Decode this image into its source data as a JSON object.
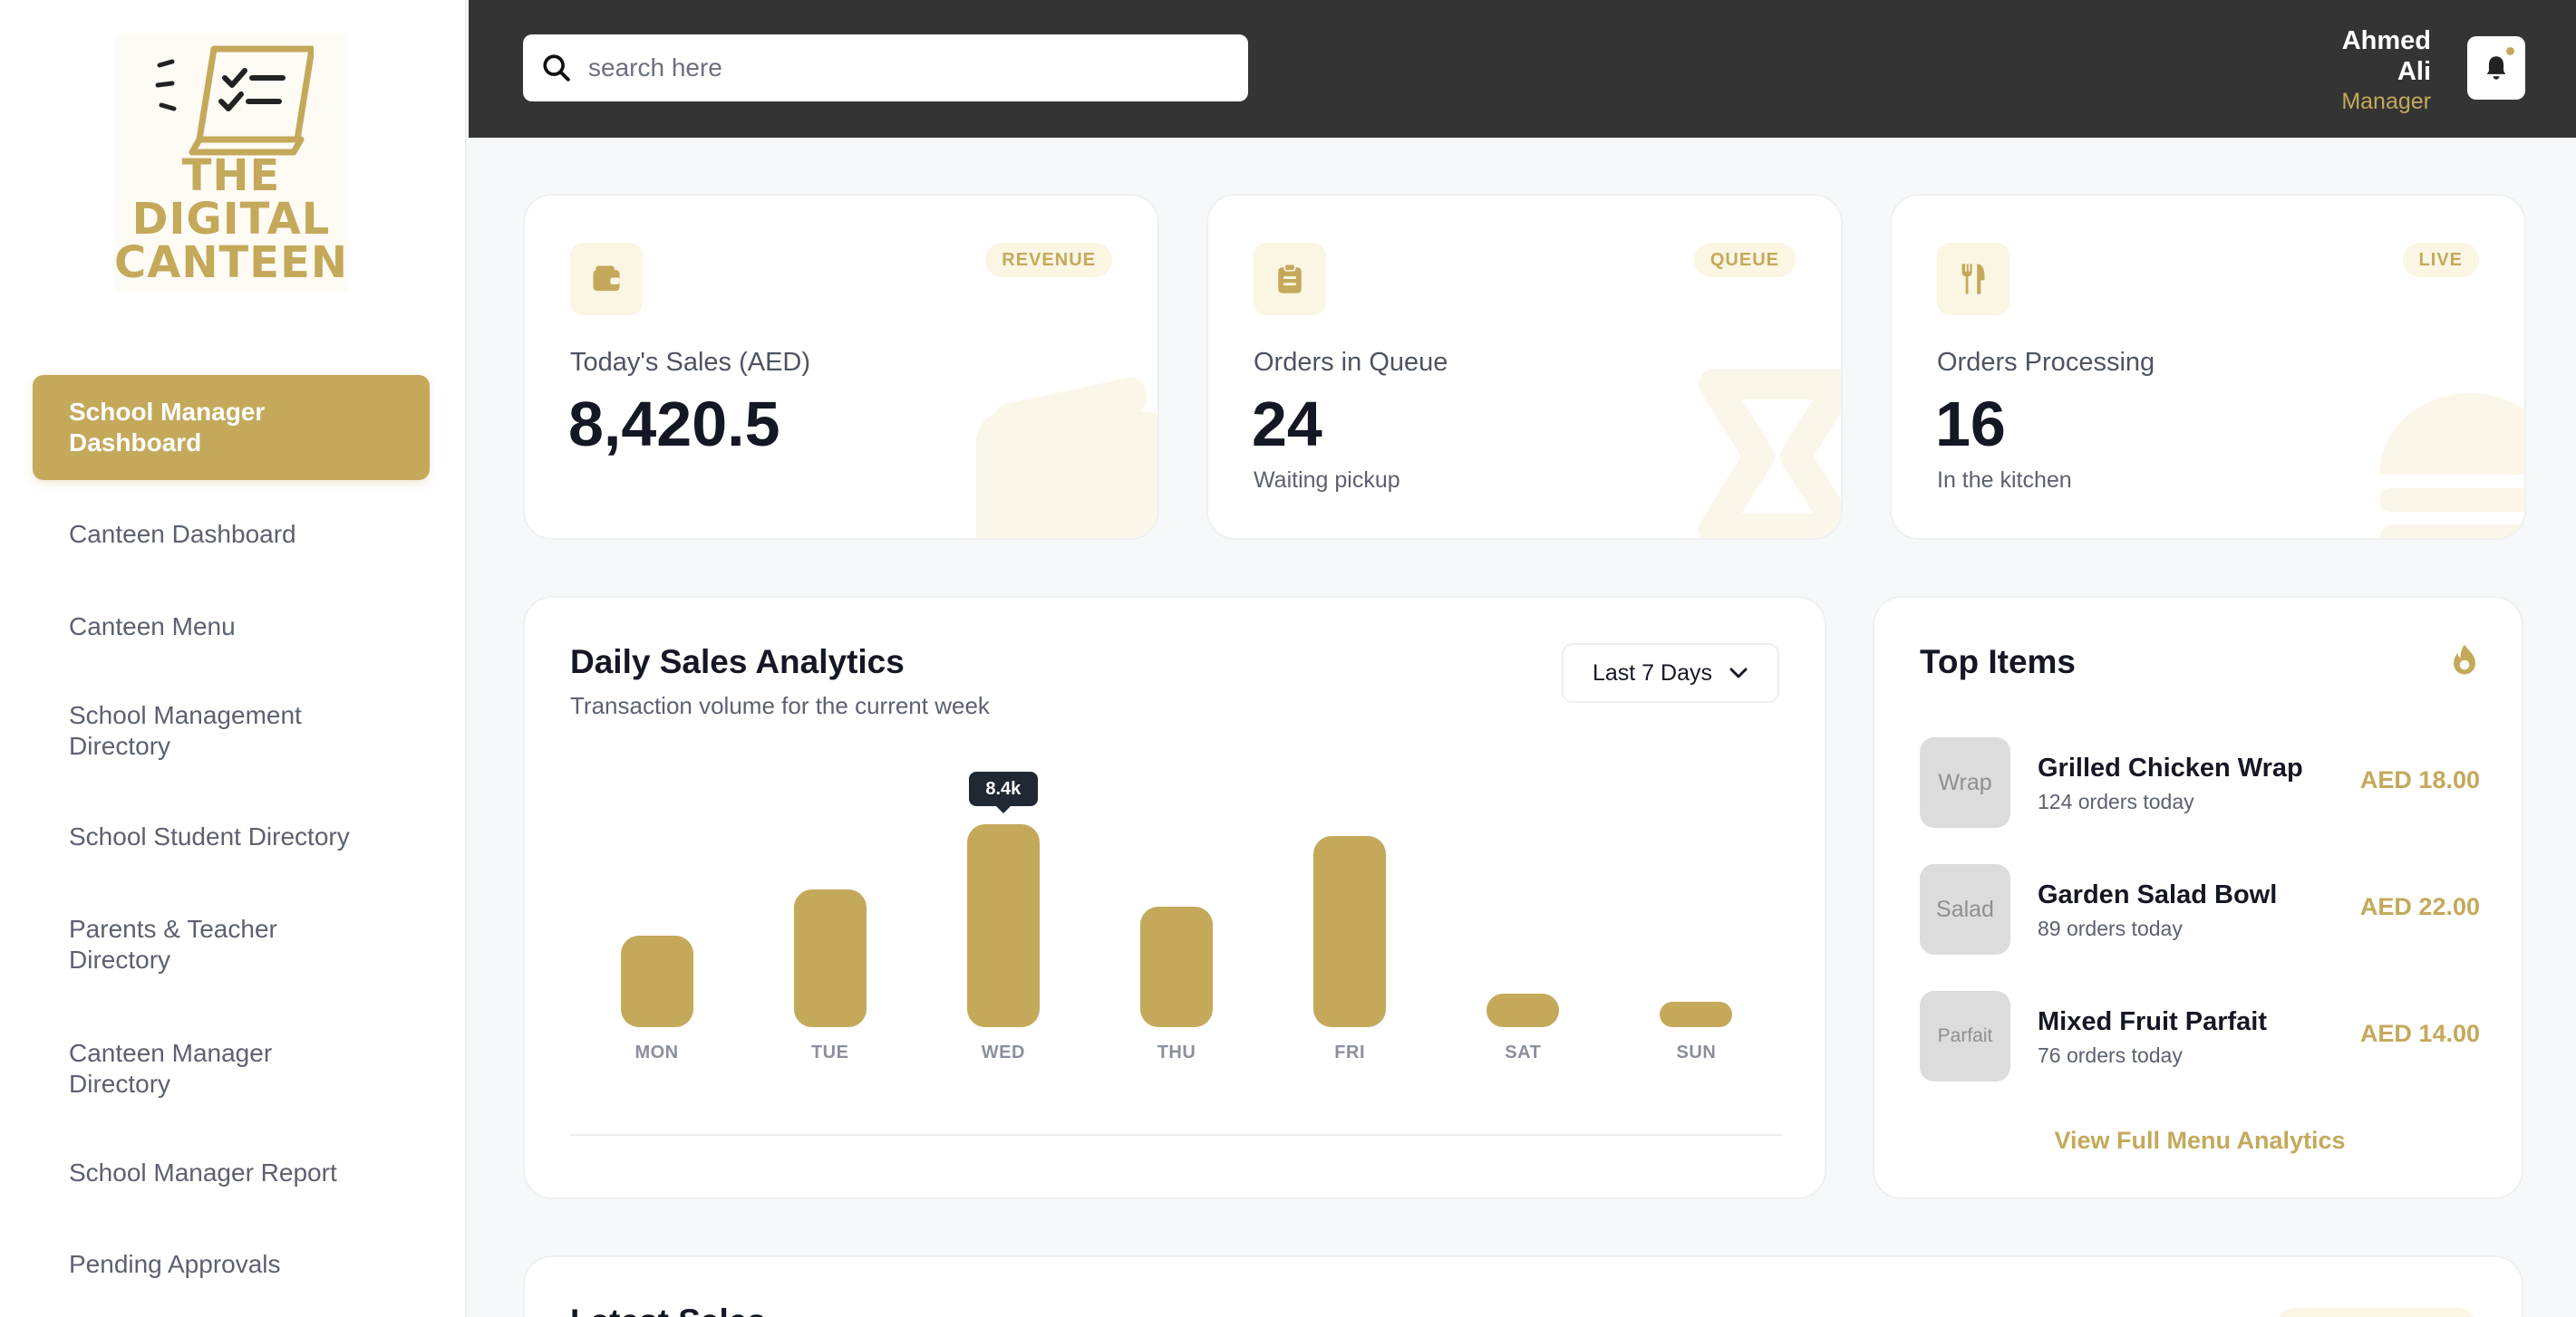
{
  "brand": {
    "logo_lines": [
      "THE",
      "DIGITAL",
      "CANTEEN"
    ],
    "accent_color": "#c4a95b"
  },
  "sidebar": {
    "items": [
      {
        "label": "School Manager Dashboard",
        "active": true
      },
      {
        "label": "Canteen Dashboard",
        "active": false
      },
      {
        "label": "Canteen Menu",
        "active": false
      },
      {
        "label": "School Management Directory",
        "active": false
      },
      {
        "label": "School Student Directory",
        "active": false
      },
      {
        "label": "Parents & Teacher Directory",
        "active": false
      },
      {
        "label": "Canteen Manager Directory",
        "active": false
      },
      {
        "label": "School Manager Report",
        "active": false
      },
      {
        "label": "Pending Approvals",
        "active": false
      }
    ]
  },
  "topbar": {
    "search_placeholder": "search here",
    "user_first": "Ahmed",
    "user_last": "Ali",
    "user_role": "Manager"
  },
  "stats": [
    {
      "badge": "REVENUE",
      "label": "Today's Sales (AED)",
      "value": "8,420.5",
      "sub": "",
      "icon": "wallet-icon"
    },
    {
      "badge": "QUEUE",
      "label": "Orders in Queue",
      "value": "24",
      "sub": "Waiting pickup",
      "icon": "clipboard-icon"
    },
    {
      "badge": "LIVE",
      "label": "Orders Processing",
      "value": "16",
      "sub": "In the kitchen",
      "icon": "utensils-icon"
    }
  ],
  "analytics": {
    "title": "Daily Sales Analytics",
    "subtitle": "Transaction volume for the current week",
    "range_label": "Last 7 Days",
    "tooltip": "8.4k"
  },
  "chart_data": {
    "type": "bar",
    "categories": [
      "MON",
      "TUE",
      "WED",
      "THU",
      "FRI",
      "SAT",
      "SUN"
    ],
    "values": [
      3.8,
      5.7,
      8.4,
      5.0,
      7.9,
      1.4,
      0.9
    ],
    "data_labels": {
      "WED": "8.4k"
    },
    "title": "Daily Sales Analytics",
    "xlabel": "",
    "ylabel": "",
    "ylim": [
      0,
      8.4
    ],
    "grid": false
  },
  "top_items": {
    "title": "Top Items",
    "items": [
      {
        "thumb": "Wrap",
        "name": "Grilled Chicken Wrap",
        "orders": "124 orders today",
        "price": "AED 18.00"
      },
      {
        "thumb": "Salad",
        "name": "Garden Salad Bowl",
        "orders": "89 orders today",
        "price": "AED 22.00"
      },
      {
        "thumb": "Parfait",
        "name": "Mixed Fruit Parfait",
        "orders": "76 orders today",
        "price": "AED 14.00"
      }
    ],
    "view_all": "View Full Menu Analytics"
  },
  "latest": {
    "title": "Latest Sales"
  }
}
